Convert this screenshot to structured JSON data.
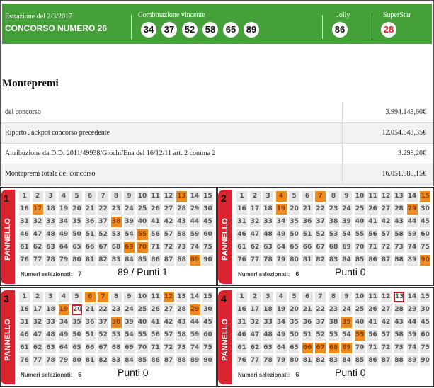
{
  "header": {
    "date": "Estrazione del 2/3/2017",
    "title": "CONCORSO NUMERO 26",
    "winning_label": "Combinazione vincente",
    "winning_numbers": [
      "34",
      "37",
      "52",
      "58",
      "65",
      "89"
    ],
    "jolly_label": "Jolly",
    "jolly": "86",
    "superstar_label": "SuperStar",
    "superstar": "28",
    "bg_color": "#46a03a"
  },
  "montepremi": {
    "title": "Montepremi",
    "rows": [
      {
        "label": "del concorso",
        "value": "3.994.143,60€"
      },
      {
        "label": "Riporto Jackpot concorso precedente",
        "value": "12.054.543,35€"
      },
      {
        "label": "Attribuzione da D.D. 2011/49938/Giochi/Ena del 16/12/11 art. 2 comma 2",
        "value": "3.298,20€"
      },
      {
        "label": "Montepremi totale del concorso",
        "value": "16.051.985,15€"
      }
    ]
  },
  "panel_word": "PANNELLO",
  "selected_label": "Numeri selezionati:",
  "highlight_color": "#ee8a1e",
  "panels": [
    {
      "number": "1",
      "selected": [
        13,
        17,
        38,
        55,
        69,
        70,
        89
      ],
      "outlined": [],
      "count": "7",
      "note": "89 / Punti 1"
    },
    {
      "number": "2",
      "selected": [
        4,
        7,
        15,
        19,
        29,
        90
      ],
      "outlined": [],
      "count": "6",
      "note": "Punti 0"
    },
    {
      "number": "3",
      "selected": [
        6,
        7,
        12,
        19,
        29,
        38
      ],
      "outlined": [
        20
      ],
      "count": "6",
      "note": "Punti 0"
    },
    {
      "number": "4",
      "selected": [
        39,
        55,
        66,
        67,
        68,
        69
      ],
      "outlined": [
        13
      ],
      "count": "6",
      "note": "Punti 0"
    }
  ]
}
